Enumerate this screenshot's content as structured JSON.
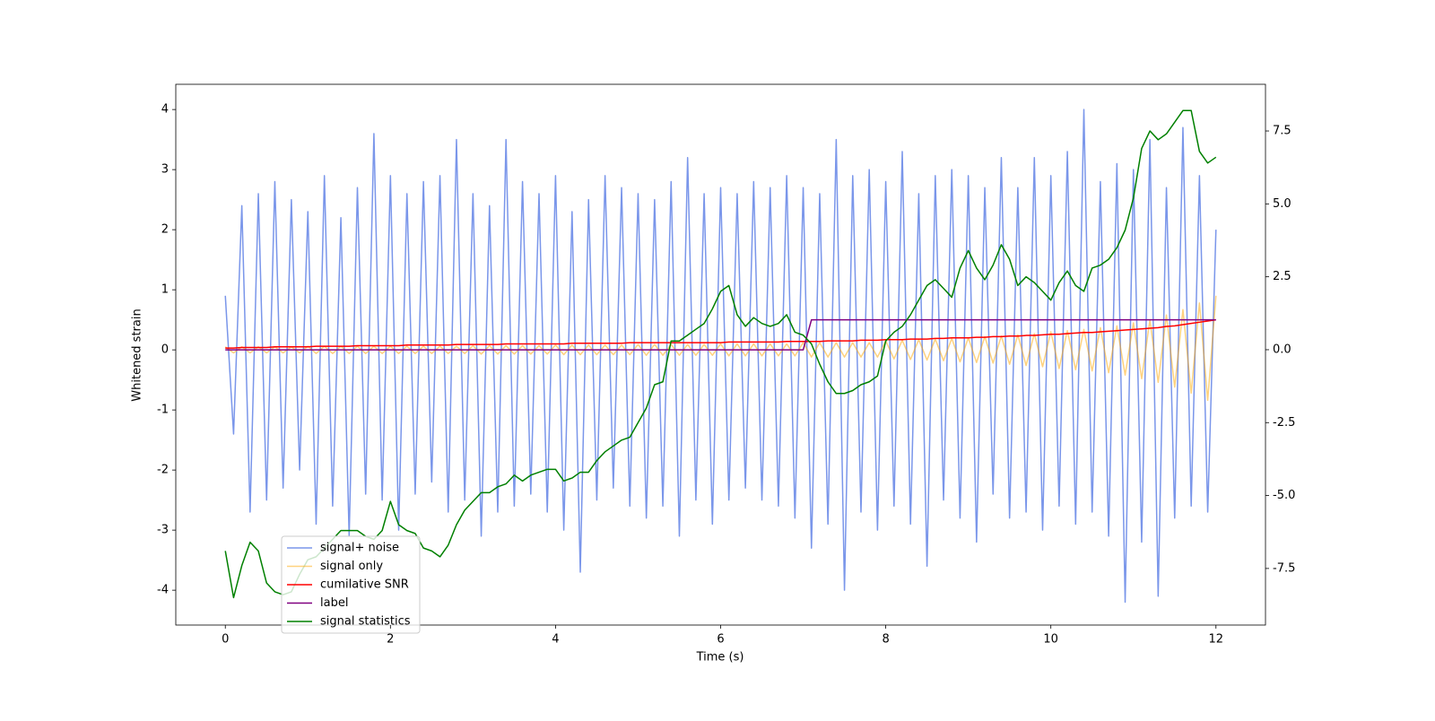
{
  "chart_data": {
    "type": "line",
    "xlabel": "Time (s)",
    "ylabel": "Whitened strain",
    "xlim": [
      -0.6,
      12.6
    ],
    "xticks": [
      0,
      2,
      4,
      6,
      8,
      10,
      12
    ],
    "ylim": [
      -4.58,
      4.42
    ],
    "yticks": [
      -4,
      -3,
      -2,
      -1,
      0,
      1,
      2,
      3,
      4
    ],
    "y2lim": [
      -9.44,
      9.1
    ],
    "y2ticks": [
      {
        "value": -7.5,
        "label": "-7.5"
      },
      {
        "value": -5,
        "label": "-5.0"
      },
      {
        "value": -2.5,
        "label": "-2.5"
      },
      {
        "value": 0,
        "label": "0.0"
      },
      {
        "value": 2.5,
        "label": "2.5"
      },
      {
        "value": 5,
        "label": "5.0"
      },
      {
        "value": 7.5,
        "label": "7.5"
      }
    ],
    "x": [
      0,
      0.1,
      0.2,
      0.3,
      0.4,
      0.5,
      0.6,
      0.7,
      0.8,
      0.9,
      1,
      1.1,
      1.2,
      1.3,
      1.4,
      1.5,
      1.6,
      1.7,
      1.8,
      1.9,
      2,
      2.1,
      2.2,
      2.3,
      2.4,
      2.5,
      2.6,
      2.7,
      2.8,
      2.9,
      3,
      3.1,
      3.2,
      3.3,
      3.4,
      3.5,
      3.6,
      3.7,
      3.8,
      3.9,
      4,
      4.1,
      4.2,
      4.3,
      4.4,
      4.5,
      4.6,
      4.7,
      4.8,
      4.9,
      5,
      5.1,
      5.2,
      5.3,
      5.4,
      5.5,
      5.6,
      5.7,
      5.8,
      5.9,
      6,
      6.1,
      6.2,
      6.3,
      6.4,
      6.5,
      6.6,
      6.7,
      6.8,
      6.9,
      7,
      7.1,
      7.2,
      7.3,
      7.4,
      7.5,
      7.6,
      7.7,
      7.8,
      7.9,
      8,
      8.1,
      8.2,
      8.3,
      8.4,
      8.5,
      8.6,
      8.7,
      8.8,
      8.9,
      9,
      9.1,
      9.2,
      9.3,
      9.4,
      9.5,
      9.6,
      9.7,
      9.8,
      9.9,
      10,
      10.1,
      10.2,
      10.3,
      10.4,
      10.5,
      10.6,
      10.7,
      10.8,
      10.9,
      11,
      11.1,
      11.2,
      11.3,
      11.4,
      11.5,
      11.6,
      11.7,
      11.8,
      11.9,
      12
    ],
    "series": [
      {
        "name": "signal+ noise",
        "color": "#4169e1",
        "opacity": 0.7,
        "values": [
          0.9,
          -1.4,
          2.4,
          -2.7,
          2.6,
          -2.5,
          2.8,
          -2.3,
          2.5,
          -2.0,
          2.3,
          -2.9,
          2.9,
          -2.6,
          2.2,
          -3.1,
          2.7,
          -2.4,
          3.6,
          -2.5,
          2.9,
          -3.0,
          2.6,
          -2.4,
          2.8,
          -2.2,
          2.9,
          -2.7,
          3.5,
          -2.5,
          2.6,
          -3.1,
          2.4,
          -2.7,
          3.5,
          -2.6,
          2.8,
          -2.4,
          2.6,
          -2.7,
          2.9,
          -3.0,
          2.3,
          -3.7,
          2.5,
          -2.5,
          2.9,
          -2.3,
          2.7,
          -2.6,
          2.6,
          -2.8,
          2.5,
          -2.6,
          2.8,
          -3.1,
          3.2,
          -2.5,
          2.6,
          -2.9,
          2.7,
          -2.5,
          2.6,
          -2.3,
          2.8,
          -2.5,
          2.7,
          -2.6,
          2.9,
          -2.8,
          2.7,
          -3.3,
          2.6,
          -2.9,
          3.5,
          -4.0,
          2.9,
          -2.7,
          3.0,
          -3.0,
          2.8,
          -2.6,
          3.3,
          -2.9,
          2.6,
          -3.6,
          2.9,
          -2.5,
          3.0,
          -2.8,
          2.9,
          -3.2,
          2.7,
          -2.4,
          3.2,
          -2.8,
          2.7,
          -2.7,
          3.2,
          -3.0,
          2.9,
          -2.6,
          3.3,
          -2.9,
          4.0,
          -2.7,
          2.8,
          -3.1,
          3.1,
          -4.2,
          3.0,
          -3.2,
          3.5,
          -4.1,
          2.7,
          -2.8,
          3.7,
          -2.6,
          2.9,
          -2.7,
          2.0
        ]
      },
      {
        "name": "signal only",
        "color": "#ffa500",
        "opacity": 0.5,
        "values": [
          0.05,
          -0.05,
          0.05,
          -0.05,
          0.05,
          -0.05,
          0.05,
          -0.05,
          0.05,
          -0.05,
          0.06,
          -0.06,
          0.06,
          -0.06,
          0.06,
          -0.06,
          0.06,
          -0.06,
          0.06,
          -0.06,
          0.06,
          -0.06,
          0.06,
          -0.06,
          0.06,
          -0.06,
          0.06,
          -0.06,
          0.06,
          -0.06,
          0.07,
          -0.07,
          0.07,
          -0.07,
          0.07,
          -0.07,
          0.07,
          -0.07,
          0.07,
          -0.07,
          0.08,
          -0.08,
          0.08,
          -0.08,
          0.08,
          -0.08,
          0.08,
          -0.08,
          0.08,
          -0.08,
          0.09,
          -0.09,
          0.09,
          -0.09,
          0.09,
          -0.09,
          0.09,
          -0.09,
          0.09,
          -0.09,
          0.1,
          -0.1,
          0.1,
          -0.1,
          0.1,
          -0.1,
          0.1,
          -0.1,
          0.1,
          -0.1,
          0.12,
          -0.12,
          0.12,
          -0.12,
          0.12,
          -0.12,
          0.12,
          -0.12,
          0.12,
          -0.12,
          0.15,
          -0.15,
          0.16,
          -0.16,
          0.17,
          -0.17,
          0.18,
          -0.18,
          0.19,
          -0.2,
          0.2,
          -0.21,
          0.22,
          -0.22,
          0.23,
          -0.24,
          0.25,
          -0.26,
          0.27,
          -0.28,
          0.3,
          -0.31,
          0.32,
          -0.33,
          0.34,
          -0.35,
          0.37,
          -0.38,
          0.4,
          -0.42,
          0.45,
          -0.48,
          0.5,
          -0.54,
          0.58,
          -0.62,
          0.67,
          -0.72,
          0.78,
          -0.84,
          0.9
        ]
      },
      {
        "name": "cumilative SNR",
        "color": "#ff0000",
        "values": [
          0.03,
          0.03,
          0.04,
          0.04,
          0.04,
          0.04,
          0.05,
          0.05,
          0.05,
          0.05,
          0.05,
          0.06,
          0.06,
          0.06,
          0.06,
          0.06,
          0.07,
          0.07,
          0.07,
          0.07,
          0.07,
          0.07,
          0.08,
          0.08,
          0.08,
          0.08,
          0.08,
          0.08,
          0.09,
          0.09,
          0.09,
          0.09,
          0.09,
          0.09,
          0.1,
          0.1,
          0.1,
          0.1,
          0.1,
          0.1,
          0.1,
          0.1,
          0.11,
          0.11,
          0.11,
          0.11,
          0.11,
          0.11,
          0.11,
          0.12,
          0.12,
          0.12,
          0.12,
          0.12,
          0.12,
          0.12,
          0.12,
          0.12,
          0.12,
          0.12,
          0.12,
          0.13,
          0.13,
          0.13,
          0.13,
          0.13,
          0.13,
          0.13,
          0.14,
          0.14,
          0.14,
          0.14,
          0.14,
          0.15,
          0.15,
          0.15,
          0.15,
          0.16,
          0.16,
          0.16,
          0.17,
          0.17,
          0.17,
          0.18,
          0.18,
          0.18,
          0.19,
          0.19,
          0.2,
          0.2,
          0.2,
          0.21,
          0.21,
          0.22,
          0.22,
          0.23,
          0.23,
          0.24,
          0.24,
          0.25,
          0.26,
          0.26,
          0.27,
          0.28,
          0.29,
          0.29,
          0.3,
          0.31,
          0.32,
          0.33,
          0.34,
          0.35,
          0.36,
          0.37,
          0.39,
          0.4,
          0.42,
          0.44,
          0.46,
          0.48,
          0.5
        ]
      },
      {
        "name": "label",
        "color": "#800080",
        "values": [
          0,
          0,
          0,
          0,
          0,
          0,
          0,
          0,
          0,
          0,
          0,
          0,
          0,
          0,
          0,
          0,
          0,
          0,
          0,
          0,
          0,
          0,
          0,
          0,
          0,
          0,
          0,
          0,
          0,
          0,
          0,
          0,
          0,
          0,
          0,
          0,
          0,
          0,
          0,
          0,
          0,
          0,
          0,
          0,
          0,
          0,
          0,
          0,
          0,
          0,
          0,
          0,
          0,
          0,
          0,
          0,
          0,
          0,
          0,
          0,
          0,
          0,
          0,
          0,
          0,
          0,
          0,
          0,
          0,
          0,
          0,
          0.5,
          0.5,
          0.5,
          0.5,
          0.5,
          0.5,
          0.5,
          0.5,
          0.5,
          0.5,
          0.5,
          0.5,
          0.5,
          0.5,
          0.5,
          0.5,
          0.5,
          0.5,
          0.5,
          0.5,
          0.5,
          0.5,
          0.5,
          0.5,
          0.5,
          0.5,
          0.5,
          0.5,
          0.5,
          0.5,
          0.5,
          0.5,
          0.5,
          0.5,
          0.5,
          0.5,
          0.5,
          0.5,
          0.5,
          0.5,
          0.5,
          0.5,
          0.5,
          0.5,
          0.5,
          0.5,
          0.5,
          0.5,
          0.5,
          0.5
        ]
      },
      {
        "name": "signal statistics",
        "color": "#008000",
        "axis": "y2",
        "values": [
          -6.9,
          -8.5,
          -7.4,
          -6.6,
          -6.9,
          -8.0,
          -8.3,
          -8.4,
          -8.3,
          -7.7,
          -7.2,
          -7.1,
          -6.8,
          -6.5,
          -6.2,
          -6.2,
          -6.2,
          -6.4,
          -6.5,
          -6.2,
          -5.2,
          -6.0,
          -6.2,
          -6.3,
          -6.8,
          -6.9,
          -7.1,
          -6.7,
          -6.0,
          -5.5,
          -5.2,
          -4.9,
          -4.9,
          -4.7,
          -4.6,
          -4.3,
          -4.5,
          -4.3,
          -4.2,
          -4.1,
          -4.1,
          -4.5,
          -4.4,
          -4.2,
          -4.2,
          -3.8,
          -3.5,
          -3.3,
          -3.1,
          -3.0,
          -2.5,
          -2.0,
          -1.2,
          -1.1,
          0.3,
          0.3,
          0.5,
          0.7,
          0.9,
          1.4,
          2.0,
          2.2,
          1.2,
          0.8,
          1.1,
          0.9,
          0.8,
          0.9,
          1.2,
          0.6,
          0.5,
          0.2,
          -0.5,
          -1.1,
          -1.5,
          -1.5,
          -1.4,
          -1.2,
          -1.1,
          -0.9,
          0.3,
          0.6,
          0.8,
          1.2,
          1.7,
          2.2,
          2.4,
          2.1,
          1.8,
          2.8,
          3.4,
          2.8,
          2.4,
          2.9,
          3.6,
          3.1,
          2.2,
          2.5,
          2.3,
          2.0,
          1.7,
          2.3,
          2.7,
          2.2,
          2.0,
          2.8,
          2.9,
          3.1,
          3.5,
          4.1,
          5.2,
          6.9,
          7.5,
          7.2,
          7.4,
          7.8,
          8.2,
          8.2,
          6.8,
          6.4,
          6.6
        ]
      }
    ]
  }
}
